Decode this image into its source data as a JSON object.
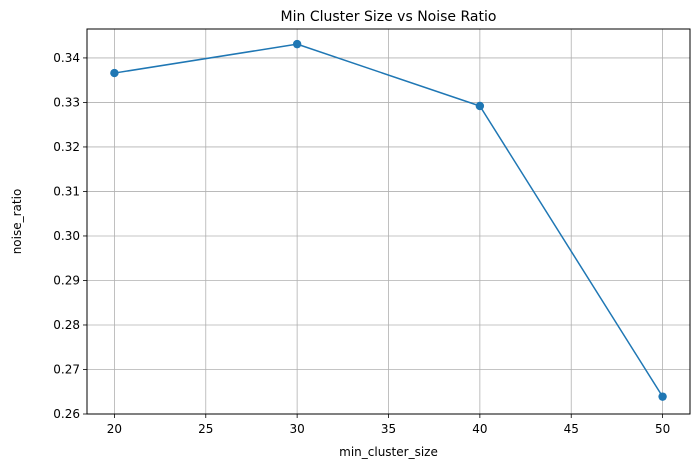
{
  "chart_data": {
    "type": "line",
    "title": "Min Cluster Size vs Noise Ratio",
    "xlabel": "min_cluster_size",
    "ylabel": "noise_ratio",
    "x": [
      20,
      30,
      40,
      50
    ],
    "series": [
      {
        "values": [
          0.3366,
          0.3431,
          0.3292,
          0.2639
        ],
        "color": "#1f77b4"
      }
    ],
    "xlim": [
      18.5,
      51.5
    ],
    "ylim": [
      0.26,
      0.3465
    ],
    "xticks": [
      20,
      25,
      30,
      35,
      40,
      45,
      50
    ],
    "yticks": [
      0.26,
      0.27,
      0.28,
      0.29,
      0.3,
      0.31,
      0.32,
      0.33,
      0.34
    ],
    "ytick_labels": [
      "0.26",
      "0.27",
      "0.28",
      "0.29",
      "0.30",
      "0.31",
      "0.32",
      "0.33",
      "0.34"
    ],
    "grid": true,
    "markers": "circle"
  }
}
